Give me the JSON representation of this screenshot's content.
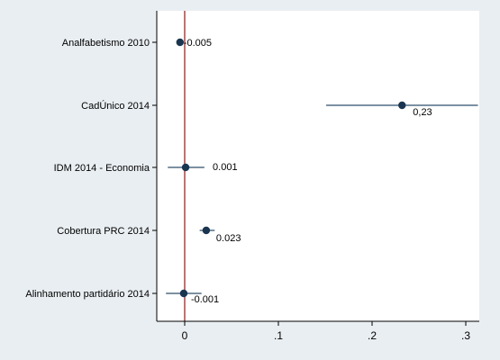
{
  "chart_data": {
    "type": "coefficient-plot",
    "title": "",
    "xlabel": "",
    "ylabel": "",
    "xlim": [
      -0.03,
      0.33
    ],
    "x_ticks": [
      {
        "value": 0,
        "label": "0"
      },
      {
        "value": 0.1,
        "label": ".1"
      },
      {
        "value": 0.2,
        "label": ".2"
      },
      {
        "value": 0.3,
        "label": ".3"
      }
    ],
    "reference_line": {
      "x": 0,
      "color": "#8b1a1a"
    },
    "grid": false,
    "colors": {
      "marker": "#1a3550",
      "ci": "#2e4d6b",
      "axis": "#000000"
    },
    "points": [
      {
        "label": "Analfabetismo 2010",
        "value": -0.005,
        "ci_low": -0.008,
        "ci_high": -0.002,
        "value_label": "-0.005"
      },
      {
        "label": "CadÚnico 2014",
        "value": 0.232,
        "ci_low": 0.151,
        "ci_high": 0.313,
        "value_label": "0,23"
      },
      {
        "label": "IDM 2014 - Economia",
        "value": 0.001,
        "ci_low": -0.018,
        "ci_high": 0.021,
        "value_label": "0.001"
      },
      {
        "label": "Cobertura PRC 2014",
        "value": 0.023,
        "ci_low": 0.016,
        "ci_high": 0.032,
        "value_label": "0.023"
      },
      {
        "label": "Alinhamento partidário 2014",
        "value": -0.001,
        "ci_low": -0.02,
        "ci_high": 0.018,
        "value_label": "-0.001"
      }
    ]
  }
}
